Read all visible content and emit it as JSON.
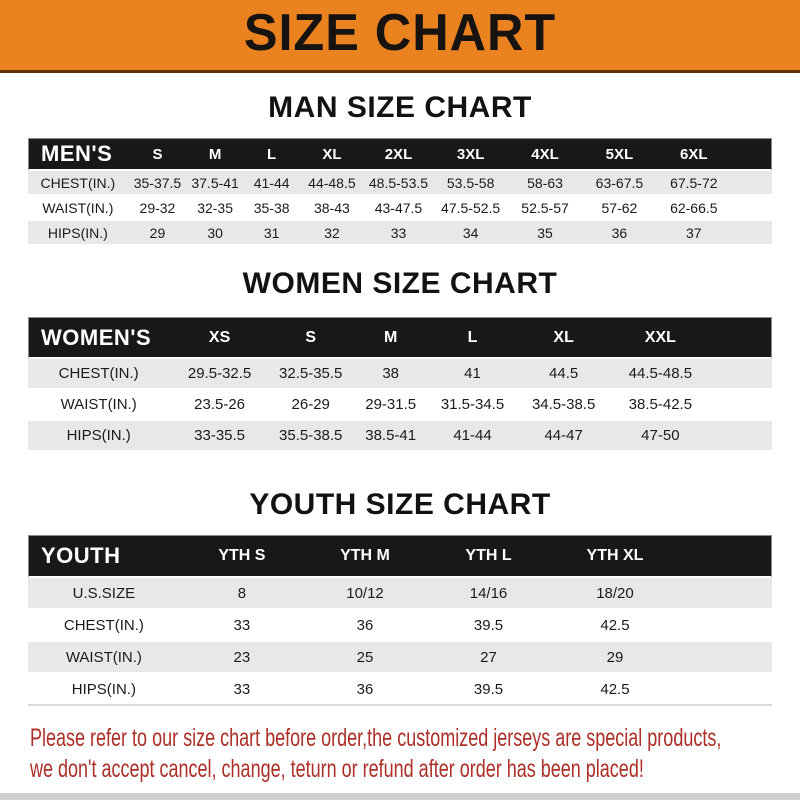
{
  "banner": {
    "title": "SIZE CHART"
  },
  "colors": {
    "banner_bg": "#EA8220",
    "banner_text": "#161310",
    "table_header_bg": "#181818",
    "stripe_bg": "#E8E8E8",
    "note_color": "#AC2F28"
  },
  "sections": [
    {
      "heading": "MAN SIZE CHART",
      "header": {
        "label": "MEN'S",
        "columns": [
          "S",
          "M",
          "L",
          "XL",
          "2XL",
          "3XL",
          "4XL",
          "5XL",
          "6XL"
        ]
      },
      "rows": [
        {
          "label": "CHEST(IN.)",
          "values": [
            "35-37.5",
            "37.5-41",
            "41-44",
            "44-48.5",
            "48.5-53.5",
            "53.5-58",
            "58-63",
            "63-67.5",
            "67.5-72"
          ]
        },
        {
          "label": "WAIST(IN.)",
          "values": [
            "29-32",
            "32-35",
            "35-38",
            "38-43",
            "43-47.5",
            "47.5-52.5",
            "52.5-57",
            "57-62",
            "62-66.5"
          ]
        },
        {
          "label": "HIPS(IN.)",
          "values": [
            "29",
            "30",
            "31",
            "32",
            "33",
            "34",
            "35",
            "36",
            "37"
          ]
        }
      ]
    },
    {
      "heading": "WOMEN SIZE CHART",
      "header": {
        "label": "WOMEN'S",
        "columns": [
          "XS",
          "S",
          "M",
          "L",
          "XL",
          "XXL"
        ]
      },
      "rows": [
        {
          "label": "CHEST(IN.)",
          "values": [
            "29.5-32.5",
            "32.5-35.5",
            "38",
            "41",
            "44.5",
            "44.5-48.5"
          ]
        },
        {
          "label": "WAIST(IN.)",
          "values": [
            "23.5-26",
            "26-29",
            "29-31.5",
            "31.5-34.5",
            "34.5-38.5",
            "38.5-42.5"
          ]
        },
        {
          "label": "HIPS(IN.)",
          "values": [
            "33-35.5",
            "35.5-38.5",
            "38.5-41",
            "41-44",
            "44-47",
            "47-50"
          ]
        }
      ]
    },
    {
      "heading": "YOUTH SIZE CHART",
      "header": {
        "label": "YOUTH",
        "columns": [
          "YTH S",
          "YTH M",
          "YTH L",
          "YTH XL"
        ]
      },
      "rows": [
        {
          "label": "U.S.SIZE",
          "values": [
            "8",
            "10/12",
            "14/16",
            "18/20"
          ]
        },
        {
          "label": "CHEST(IN.)",
          "values": [
            "33",
            "36",
            "39.5",
            "42.5"
          ]
        },
        {
          "label": "WAIST(IN.)",
          "values": [
            "23",
            "25",
            "27",
            "29"
          ]
        },
        {
          "label": "HIPS(IN.)",
          "values": [
            "33",
            "36",
            "39.5",
            "42.5"
          ]
        }
      ]
    }
  ],
  "footer": {
    "lines": [
      "Please refer to our size chart before order,the customized jerseys are special products,",
      "we don't accept cancel, change, teturn or refund after order has been placed!"
    ]
  }
}
